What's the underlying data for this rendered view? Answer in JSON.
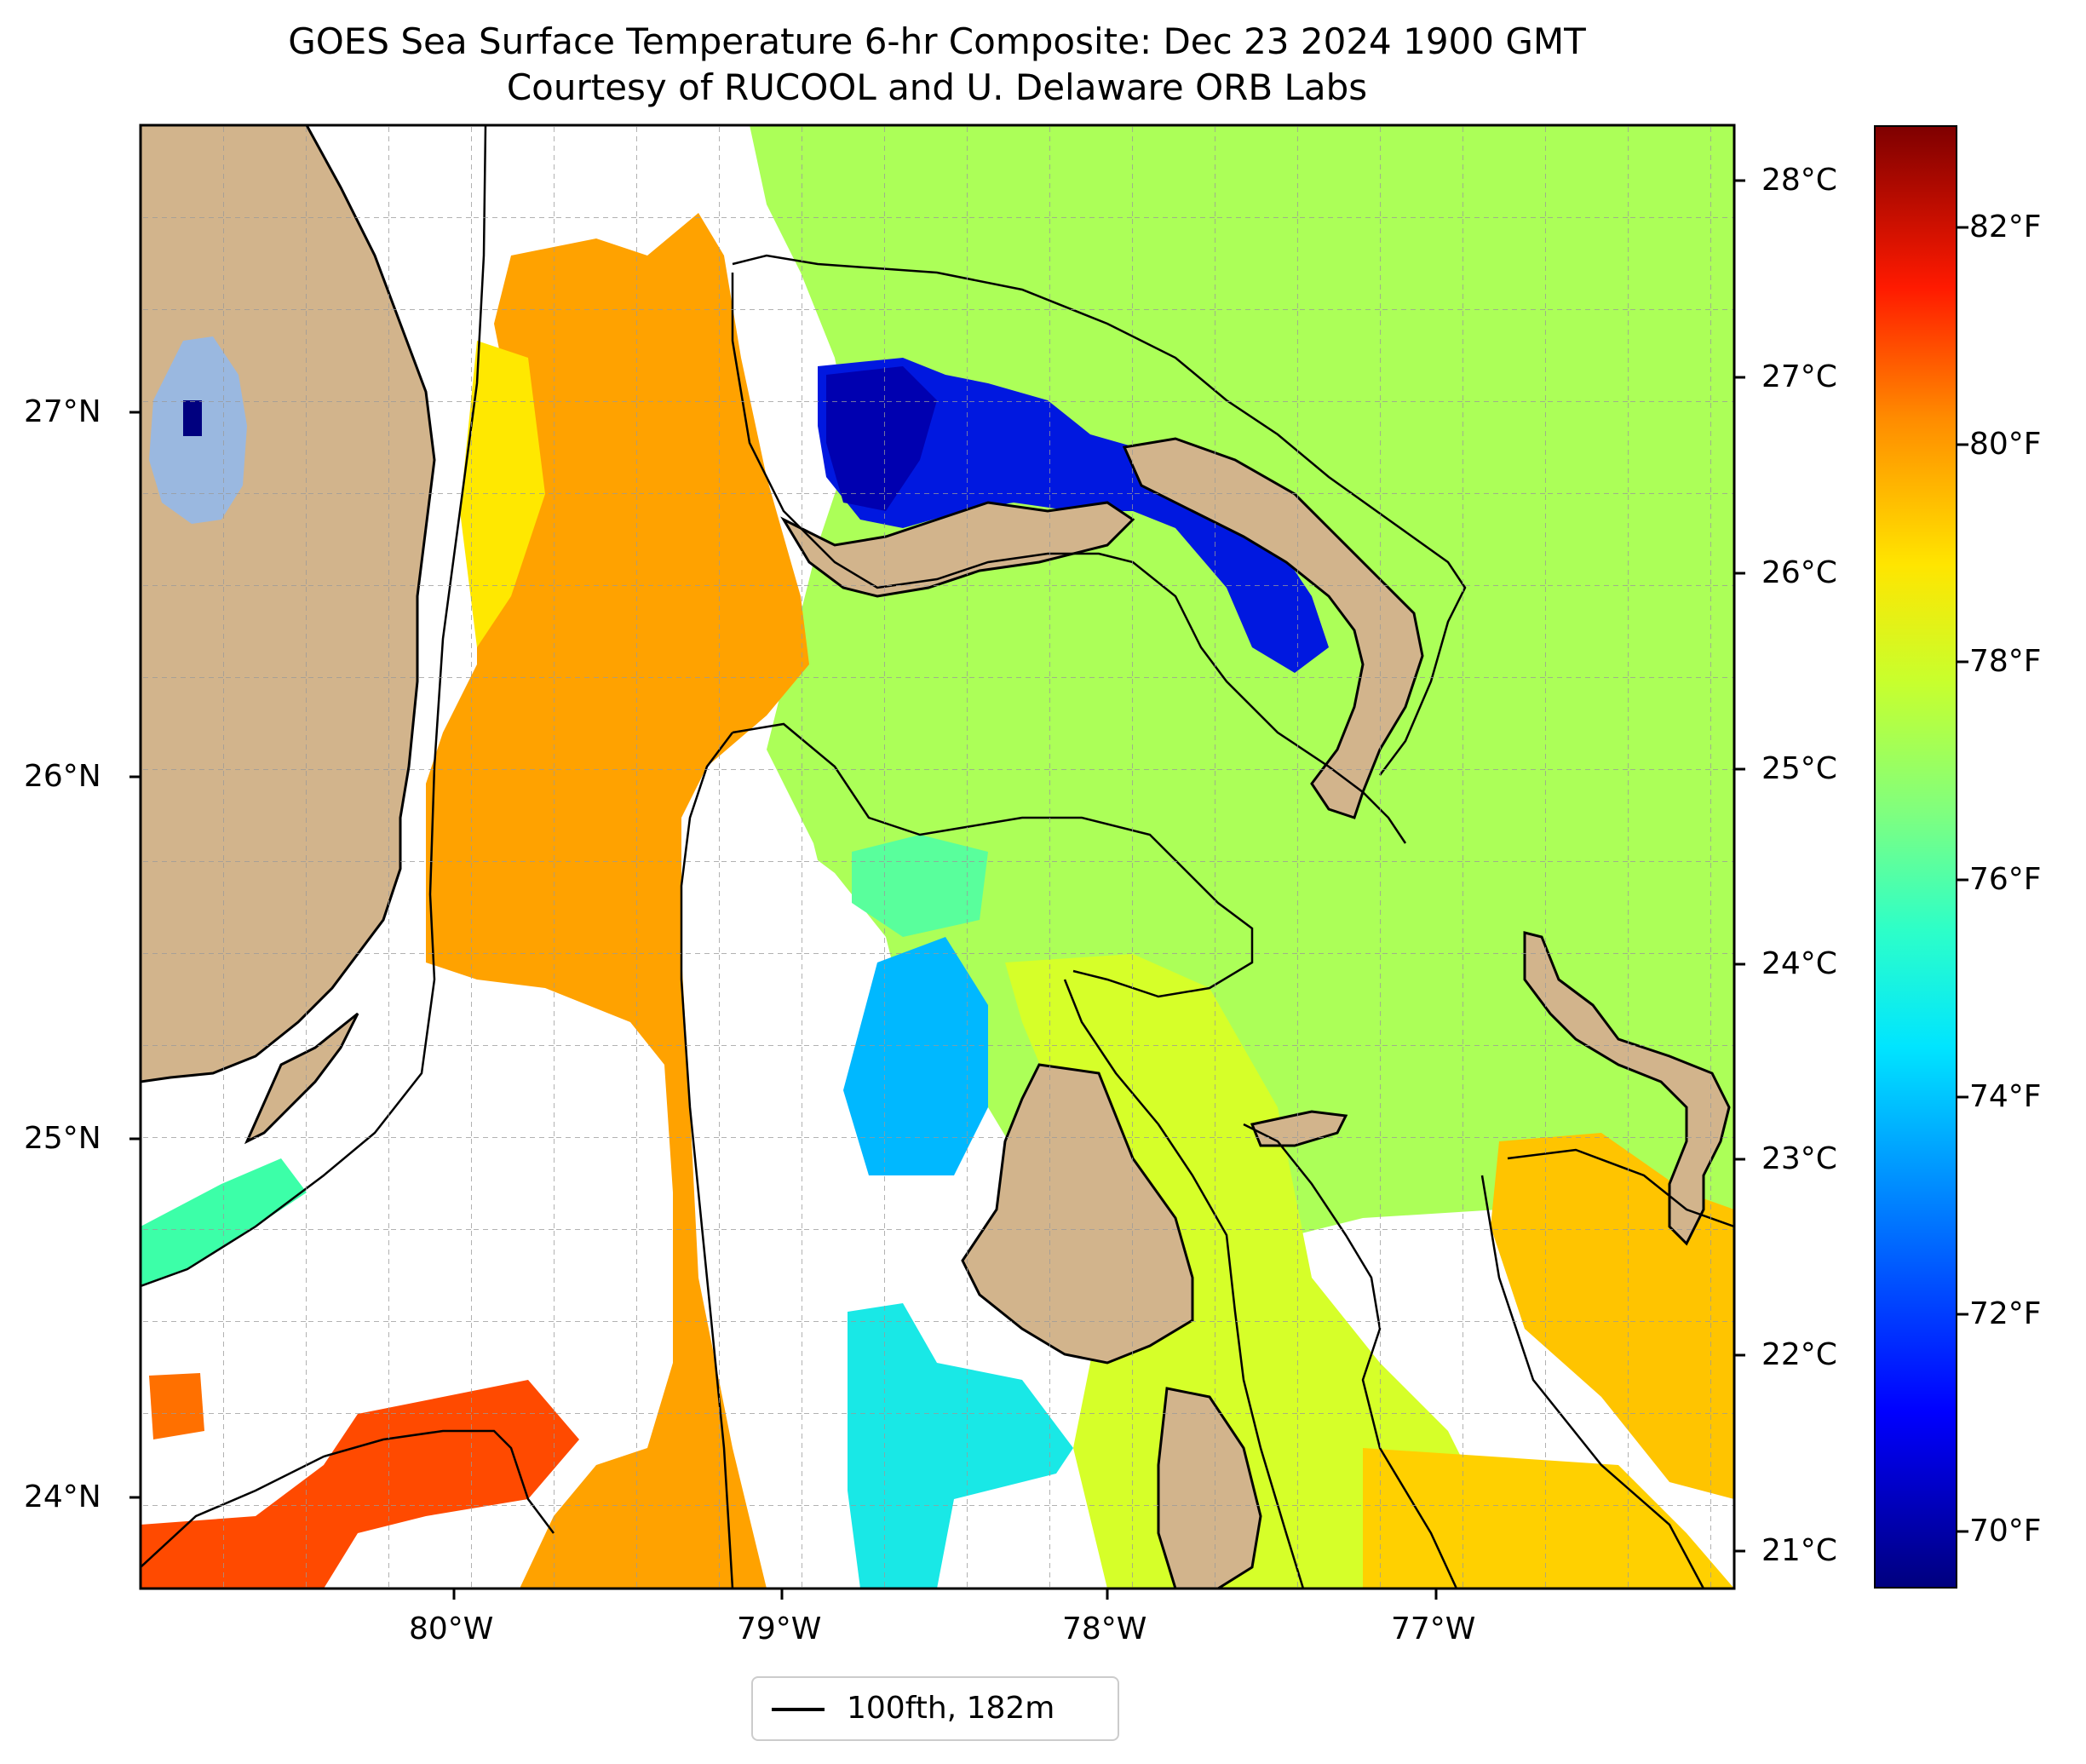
{
  "title": {
    "line1": "GOES Sea Surface Temperature 6-hr Composite: Dec 23 2024 1900 GMT",
    "line2": "Courtesy of RUCOOL and U. Delaware ORB Labs"
  },
  "axes": {
    "lat_labels": [
      "27°N",
      "26°N",
      "25°N",
      "24°N"
    ],
    "lon_labels": [
      "80°W",
      "79°W",
      "78°W",
      "77°W"
    ]
  },
  "colorbar": {
    "celsius_labels": [
      "28°C",
      "27°C",
      "26°C",
      "25°C",
      "24°C",
      "23°C",
      "22°C",
      "21°C"
    ],
    "fahrenheit_labels": [
      "82°F",
      "80°F",
      "78°F",
      "76°F",
      "74°F",
      "72°F",
      "70°F"
    ],
    "colormap": "jet"
  },
  "legend": {
    "label": "100fth, 182m",
    "line_color": "#000000"
  },
  "colors": {
    "land": "#d2b48c",
    "lake": "#9ab8e0",
    "no_data": "#ffffff",
    "contour": "#000000"
  }
}
